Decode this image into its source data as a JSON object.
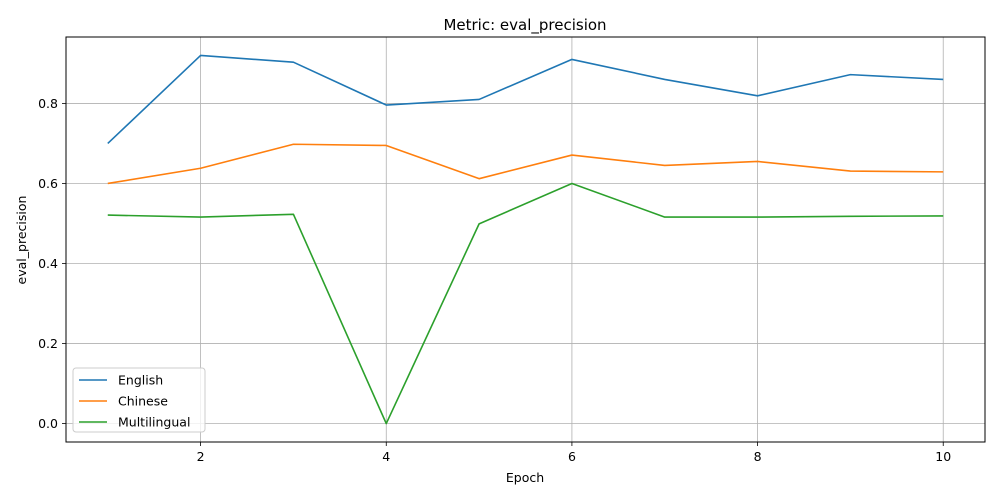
{
  "chart_data": {
    "type": "line",
    "title": "Metric: eval_precision",
    "xlabel": "Epoch",
    "ylabel": "eval_precision",
    "x": [
      1,
      2,
      3,
      4,
      5,
      6,
      7,
      8,
      9,
      10
    ],
    "xlim": [
      0.55,
      10.45
    ],
    "ylim": [
      -0.046,
      0.966
    ],
    "xticks": [
      2,
      4,
      6,
      8,
      10
    ],
    "yticks": [
      0.0,
      0.2,
      0.4,
      0.6,
      0.8
    ],
    "xtick_labels": [
      "2",
      "4",
      "6",
      "8",
      "10"
    ],
    "ytick_labels": [
      "0.0",
      "0.2",
      "0.4",
      "0.6",
      "0.8"
    ],
    "grid": true,
    "legend_position": "lower-left",
    "series": [
      {
        "name": "English",
        "color": "#1f77b4",
        "values": [
          0.7,
          0.92,
          0.903,
          0.796,
          0.81,
          0.91,
          0.86,
          0.819,
          0.872,
          0.86
        ]
      },
      {
        "name": "Chinese",
        "color": "#ff7f0e",
        "values": [
          0.6,
          0.638,
          0.698,
          0.695,
          0.612,
          0.671,
          0.645,
          0.655,
          0.631,
          0.629
        ]
      },
      {
        "name": "Multilingual",
        "color": "#2ca02c",
        "values": [
          0.521,
          0.516,
          0.523,
          0.0,
          0.499,
          0.6,
          0.516,
          0.516,
          0.518,
          0.519
        ]
      }
    ]
  }
}
